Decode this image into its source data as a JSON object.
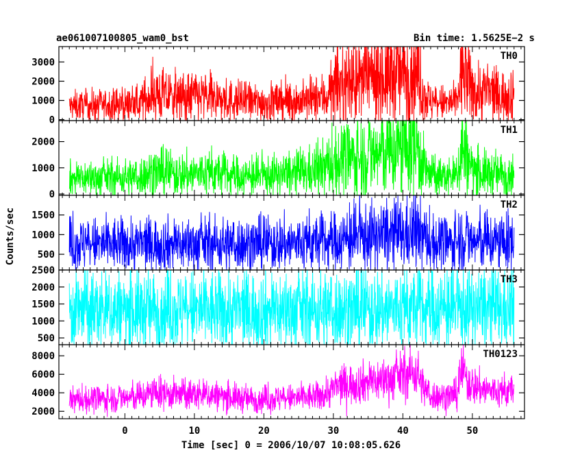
{
  "chart_data": {
    "type": "line",
    "title_left": "ae061007100805_wam0_bst",
    "title_right": "Bin time: 1.5625E−2 s",
    "xlabel": "Time [sec] 0 = 2006/10/07 10:08:05.626",
    "ylabel": "Counts/sec",
    "xlim": [
      -9.5,
      57.5
    ],
    "x_ticks": [
      0,
      10,
      20,
      30,
      40,
      50
    ],
    "x_tick_labels": [
      "0",
      "10",
      "20",
      "30",
      "40",
      "50"
    ],
    "data_x_range": [
      -8,
      56
    ],
    "panels": [
      {
        "name": "TH0",
        "color": "#ff0000",
        "ylim": [
          -50,
          3800
        ],
        "y_ticks": [
          0,
          1000,
          2000,
          3000
        ],
        "y_tick_labels": [
          "0",
          "1000",
          "2000",
          "3000"
        ],
        "noise": 0.55,
        "envelope": [
          [
            -8,
            700
          ],
          [
            2,
            800
          ],
          [
            4,
            1350
          ],
          [
            8,
            1100
          ],
          [
            10,
            1250
          ],
          [
            14,
            1000
          ],
          [
            20,
            900
          ],
          [
            26,
            950
          ],
          [
            29,
            1200
          ],
          [
            31,
            1800
          ],
          [
            34,
            2000
          ],
          [
            38,
            2300
          ],
          [
            42,
            2500
          ],
          [
            43,
            1300
          ],
          [
            44,
            900
          ],
          [
            46,
            850
          ],
          [
            47.8,
            900
          ],
          [
            48.5,
            2800
          ],
          [
            49.5,
            1800
          ],
          [
            50.5,
            1400
          ],
          [
            52,
            1500
          ],
          [
            54,
            1200
          ],
          [
            56,
            1400
          ]
        ]
      },
      {
        "name": "TH1",
        "color": "#00ff00",
        "ylim": [
          -50,
          2800
        ],
        "y_ticks": [
          0,
          1000,
          2000
        ],
        "y_tick_labels": [
          "0",
          "1000",
          "2000"
        ],
        "noise": 0.55,
        "envelope": [
          [
            -8,
            600
          ],
          [
            2,
            650
          ],
          [
            4,
            850
          ],
          [
            8,
            750
          ],
          [
            12,
            800
          ],
          [
            18,
            650
          ],
          [
            24,
            750
          ],
          [
            28,
            900
          ],
          [
            31,
            1300
          ],
          [
            34,
            1400
          ],
          [
            38,
            1600
          ],
          [
            42,
            1900
          ],
          [
            43,
            1000
          ],
          [
            44,
            700
          ],
          [
            46,
            650
          ],
          [
            47.8,
            700
          ],
          [
            48.5,
            1900
          ],
          [
            49.5,
            1100
          ],
          [
            51,
            800
          ],
          [
            54,
            750
          ],
          [
            56,
            800
          ]
        ]
      },
      {
        "name": "TH2",
        "color": "#0000ff",
        "ylim": [
          100,
          2000
        ],
        "y_ticks": [
          500,
          1000,
          1500
        ],
        "y_tick_labels": [
          "500",
          "1000",
          "1500"
        ],
        "noise": 0.45,
        "envelope": [
          [
            -8,
            750
          ],
          [
            10,
            760
          ],
          [
            20,
            760
          ],
          [
            28,
            800
          ],
          [
            31,
            850
          ],
          [
            35,
            950
          ],
          [
            40,
            980
          ],
          [
            42,
            1050
          ],
          [
            44,
            800
          ],
          [
            47,
            780
          ],
          [
            48.5,
            920
          ],
          [
            50,
            820
          ],
          [
            56,
            800
          ]
        ]
      },
      {
        "name": "TH3",
        "color": "#00ffff",
        "ylim": [
          300,
          2500
        ],
        "y_ticks": [
          500,
          1000,
          1500,
          2000,
          2500
        ],
        "y_tick_labels": [
          "500",
          "1000",
          "1500",
          "2000",
          "2500"
        ],
        "noise": 0.45,
        "envelope": [
          [
            -8,
            1300
          ],
          [
            20,
            1300
          ],
          [
            40,
            1350
          ],
          [
            50,
            1350
          ],
          [
            56,
            1300
          ]
        ]
      },
      {
        "name": "TH0123",
        "color": "#ff00ff",
        "ylim": [
          1200,
          9200
        ],
        "y_ticks": [
          2000,
          4000,
          6000,
          8000
        ],
        "y_tick_labels": [
          "2000",
          "4000",
          "6000",
          "8000"
        ],
        "noise": 0.22,
        "envelope": [
          [
            -8,
            3200
          ],
          [
            2,
            3500
          ],
          [
            4,
            4000
          ],
          [
            8,
            3800
          ],
          [
            12,
            3800
          ],
          [
            18,
            3300
          ],
          [
            24,
            3400
          ],
          [
            28,
            3600
          ],
          [
            31,
            4800
          ],
          [
            34,
            5100
          ],
          [
            38,
            5500
          ],
          [
            42,
            6300
          ],
          [
            43,
            4500
          ],
          [
            44,
            3700
          ],
          [
            46,
            3600
          ],
          [
            47.8,
            3800
          ],
          [
            48.5,
            6500
          ],
          [
            49.5,
            5000
          ],
          [
            51,
            4500
          ],
          [
            54,
            4000
          ],
          [
            56,
            4300
          ]
        ]
      }
    ]
  }
}
